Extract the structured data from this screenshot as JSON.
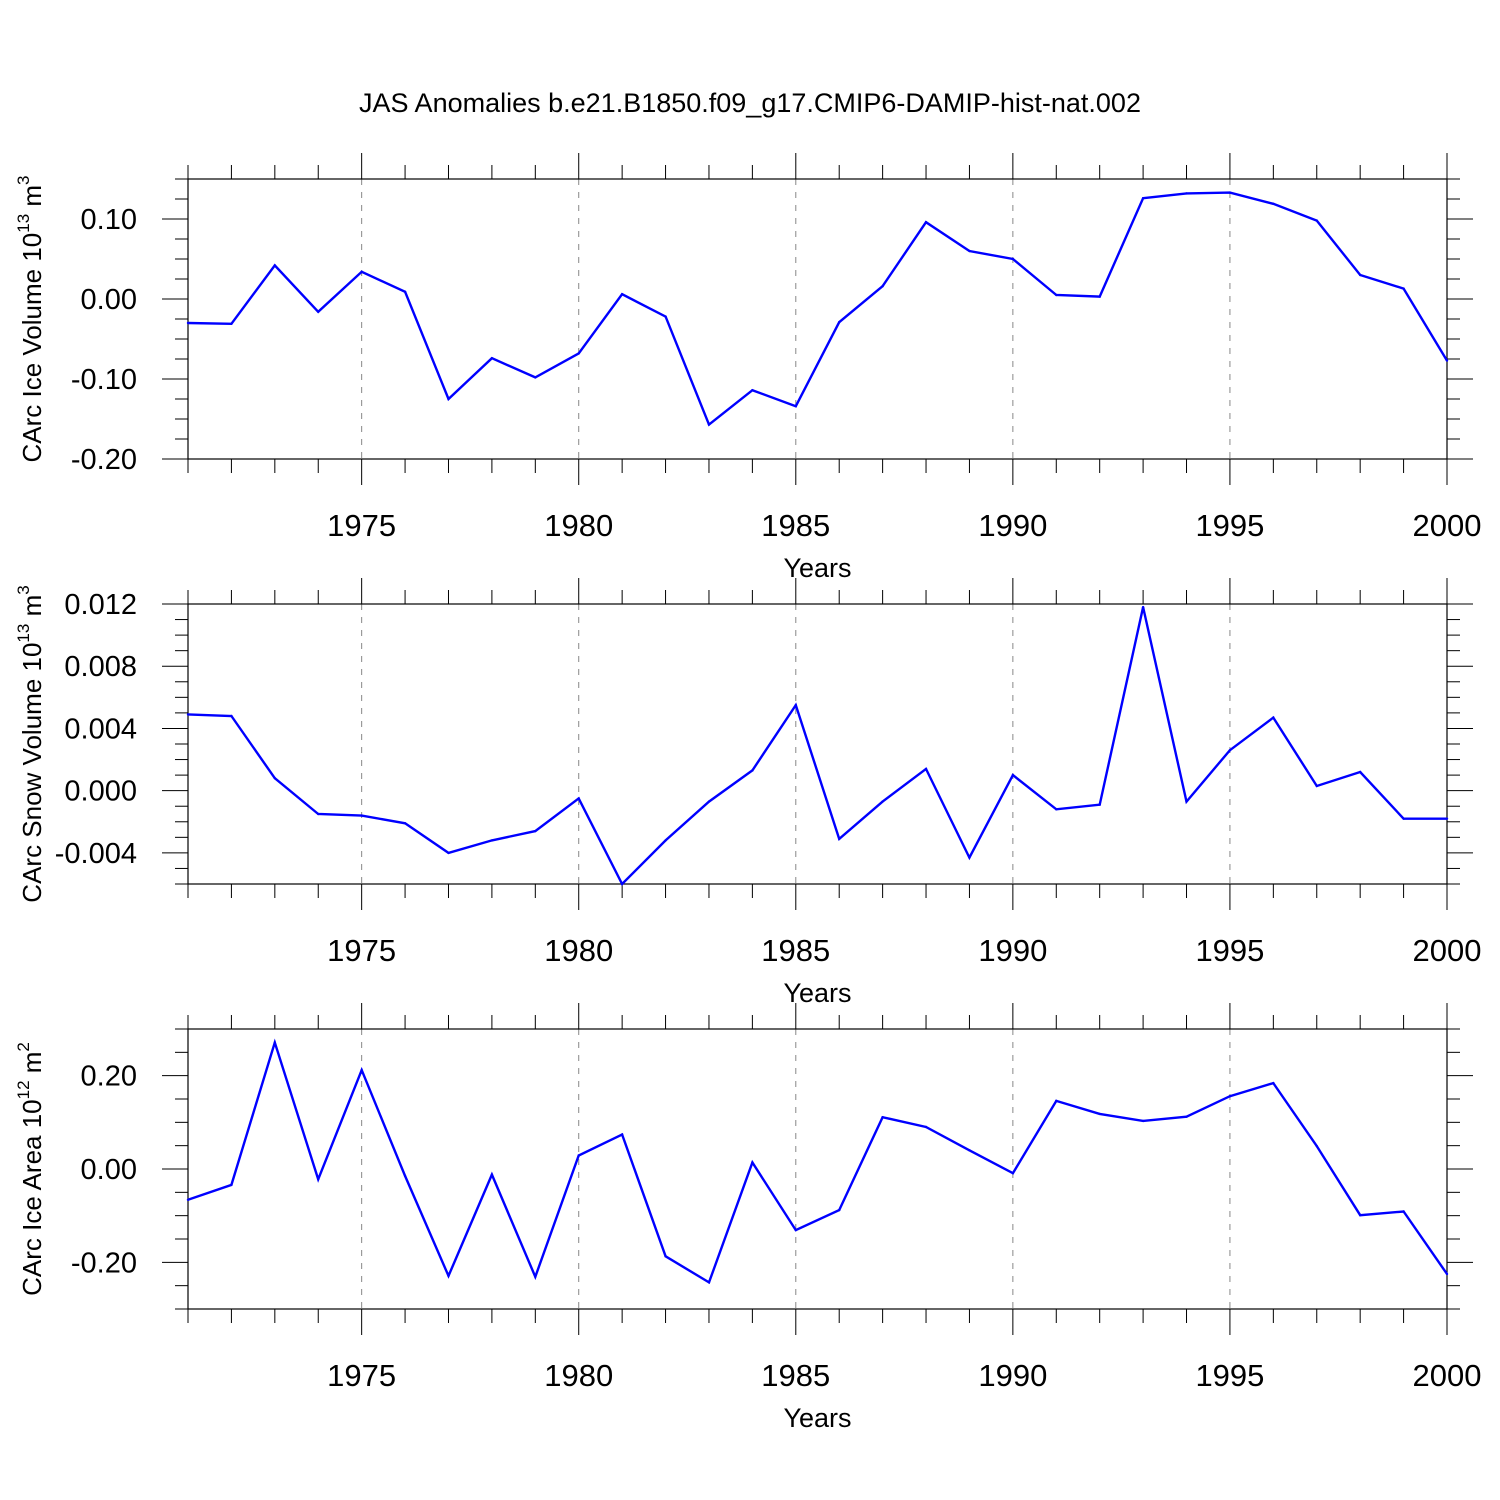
{
  "title": "JAS Anomalies b.e21.B1850.f09_g17.CMIP6-DAMIP-hist-nat.002",
  "colors": {
    "line": "#0000ff",
    "axis": "#000000",
    "grid": "#888888"
  },
  "chart_data": [
    {
      "type": "line",
      "ylabel": "CArc Ice Volume 10",
      "ylabel_sup": "13",
      "ylabel_unit": "m",
      "ylabel_unit_sup": "3",
      "xlabel": "Years",
      "xlim": [
        1971,
        2000
      ],
      "ylim": [
        -0.2,
        0.15
      ],
      "yticks": [
        -0.2,
        -0.1,
        0.0,
        0.1
      ],
      "ytick_labels": [
        "-0.20",
        "-0.10",
        "0.00",
        "0.10"
      ],
      "xticks": [
        1975,
        1980,
        1985,
        1990,
        1995,
        2000
      ],
      "xtick_labels": [
        "1975",
        "1980",
        "1985",
        "1990",
        "1995",
        "2000"
      ],
      "grid_years": [
        1975,
        1980,
        1985,
        1990,
        1995
      ],
      "x": [
        1971,
        1972,
        1973,
        1974,
        1975,
        1976,
        1977,
        1978,
        1979,
        1980,
        1981,
        1982,
        1983,
        1984,
        1985,
        1986,
        1987,
        1988,
        1989,
        1990,
        1991,
        1992,
        1993,
        1994,
        1995,
        1996,
        1997,
        1998,
        1999,
        2000
      ],
      "values": [
        -0.03,
        -0.031,
        0.042,
        -0.016,
        0.034,
        0.009,
        -0.125,
        -0.074,
        -0.098,
        -0.068,
        0.006,
        -0.022,
        -0.157,
        -0.114,
        -0.134,
        -0.029,
        0.016,
        0.096,
        0.06,
        0.05,
        0.005,
        0.003,
        0.126,
        0.132,
        0.133,
        0.119,
        0.098,
        0.03,
        0.013,
        -0.077
      ]
    },
    {
      "type": "line",
      "ylabel": "CArc Snow Volume 10",
      "ylabel_sup": "13",
      "ylabel_unit": "m",
      "ylabel_unit_sup": "3",
      "xlabel": "Years",
      "xlim": [
        1971,
        2000
      ],
      "ylim": [
        -0.006,
        0.012
      ],
      "yticks": [
        -0.004,
        0.0,
        0.004,
        0.008,
        0.012
      ],
      "ytick_labels": [
        "-0.004",
        "0.000",
        "0.004",
        "0.008",
        "0.012"
      ],
      "xticks": [
        1975,
        1980,
        1985,
        1990,
        1995,
        2000
      ],
      "xtick_labels": [
        "1975",
        "1980",
        "1985",
        "1990",
        "1995",
        "2000"
      ],
      "grid_years": [
        1975,
        1980,
        1985,
        1990,
        1995
      ],
      "x": [
        1971,
        1972,
        1973,
        1974,
        1975,
        1976,
        1977,
        1978,
        1979,
        1980,
        1981,
        1982,
        1983,
        1984,
        1985,
        1986,
        1987,
        1988,
        1989,
        1990,
        1991,
        1992,
        1993,
        1994,
        1995,
        1996,
        1997,
        1998,
        1999,
        2000
      ],
      "values": [
        0.0049,
        0.0048,
        0.0008,
        -0.0015,
        -0.0016,
        -0.0021,
        -0.004,
        -0.0032,
        -0.0026,
        -0.0005,
        -0.006,
        -0.0032,
        -0.0007,
        0.0013,
        0.0055,
        -0.0031,
        -0.0007,
        0.0014,
        -0.0043,
        0.001,
        -0.0012,
        -0.0009,
        0.0118,
        -0.0007,
        0.0026,
        0.0047,
        0.0003,
        0.0012,
        -0.0018,
        -0.0018
      ]
    },
    {
      "type": "line",
      "ylabel": "CArc Ice Area 10",
      "ylabel_sup": "12",
      "ylabel_unit": "m",
      "ylabel_unit_sup": "2",
      "xlabel": "Years",
      "xlim": [
        1971,
        2000
      ],
      "ylim": [
        -0.3,
        0.3
      ],
      "yticks": [
        -0.2,
        0.0,
        0.2
      ],
      "ytick_labels": [
        "-0.20",
        "0.00",
        "0.20"
      ],
      "xticks": [
        1975,
        1980,
        1985,
        1990,
        1995,
        2000
      ],
      "xtick_labels": [
        "1975",
        "1980",
        "1985",
        "1990",
        "1995",
        "2000"
      ],
      "grid_years": [
        1975,
        1980,
        1985,
        1990,
        1995
      ],
      "x": [
        1971,
        1972,
        1973,
        1974,
        1975,
        1976,
        1977,
        1978,
        1979,
        1980,
        1981,
        1982,
        1983,
        1984,
        1985,
        1986,
        1987,
        1988,
        1989,
        1990,
        1991,
        1992,
        1993,
        1994,
        1995,
        1996,
        1997,
        1998,
        1999,
        2000
      ],
      "values": [
        -0.066,
        -0.034,
        0.271,
        -0.022,
        0.212,
        -0.015,
        -0.229,
        -0.012,
        -0.231,
        0.029,
        0.074,
        -0.187,
        -0.243,
        0.014,
        -0.131,
        -0.088,
        0.111,
        0.09,
        0.04,
        -0.009,
        0.146,
        0.118,
        0.103,
        0.112,
        0.156,
        0.184,
        0.049,
        -0.099,
        -0.091,
        -0.225
      ]
    }
  ]
}
